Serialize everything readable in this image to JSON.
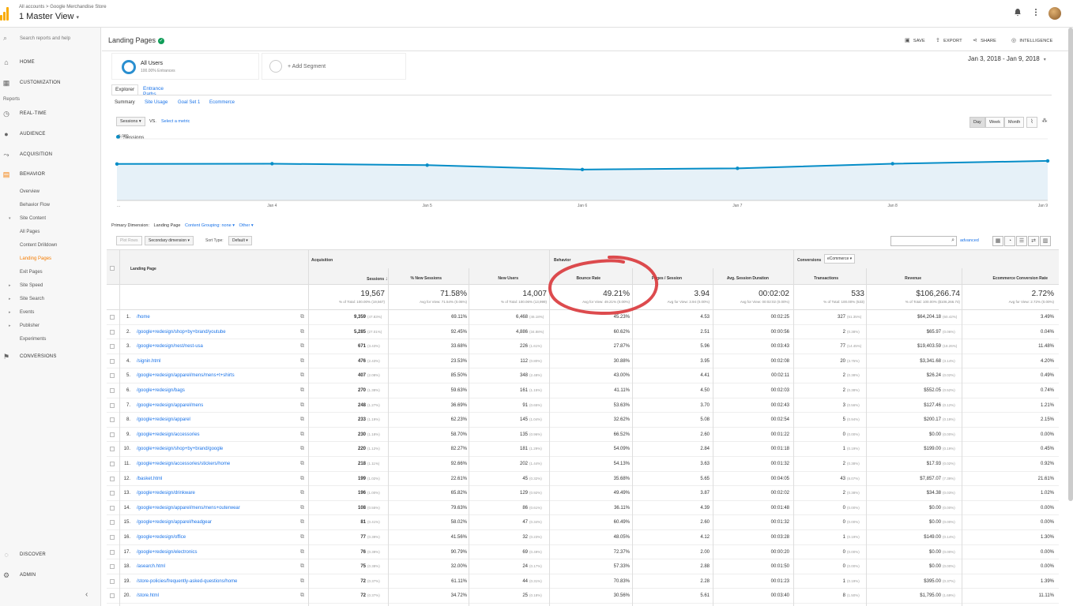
{
  "topbar": {
    "breadcrumb": "All accounts > Google Merchandise Store",
    "view_name": "1 Master View",
    "view_caret": "▾",
    "bell_icon": "bell-icon",
    "menu_icon": "more-vert-icon"
  },
  "sidebar": {
    "search_placeholder": "Search reports and help",
    "home": "HOME",
    "customization": "CUSTOMIZATION",
    "reports_header": "Reports",
    "realtime": "REAL-TIME",
    "audience": "AUDIENCE",
    "acquisition": "ACQUISITION",
    "behavior": "BEHAVIOR",
    "sub": {
      "overview": "Overview",
      "behavior_flow": "Behavior Flow",
      "site_content": "Site Content",
      "all_pages": "All Pages",
      "content_drilldown": "Content Drilldown",
      "landing_pages": "Landing Pages",
      "exit_pages": "Exit Pages",
      "site_speed": "Site Speed",
      "site_search": "Site Search",
      "events": "Events",
      "publisher": "Publisher",
      "experiments": "Experiments"
    },
    "conversions": "CONVERSIONS",
    "discover": "DISCOVER",
    "admin": "ADMIN"
  },
  "header": {
    "title": "Landing Pages",
    "save": "SAVE",
    "export": "EXPORT",
    "share": "SHARE",
    "intelligence": "INTELLIGENCE"
  },
  "segments": {
    "all_users": "All Users",
    "all_users_sub": "100.00% Entrances",
    "add_segment": "+ Add Segment"
  },
  "date_range": "Jan 3, 2018 - Jan 9, 2018",
  "tabs": {
    "explorer": "Explorer",
    "entrance_paths": "Entrance Paths",
    "summary": "Summary",
    "site_usage": "Site Usage",
    "goal_set": "Goal Set 1",
    "ecommerce": "Ecommerce"
  },
  "chart_controls": {
    "metric": "Sessions",
    "vs": "VS.",
    "select_metric": "Select a metric",
    "day": "Day",
    "week": "Week",
    "month": "Month"
  },
  "chart_data": {
    "type": "line",
    "legend": "Sessions",
    "y_ticks": [
      "5,000",
      "2,500"
    ],
    "x_labels": [
      "...",
      "Jan 4",
      "Jan 5",
      "Jan 6",
      "Jan 7",
      "Jan 8",
      "Jan 9"
    ],
    "series": [
      {
        "name": "Sessions",
        "values": [
          2750,
          2770,
          2660,
          2330,
          2420,
          2770,
          2980
        ]
      }
    ],
    "ylim": [
      0,
      5000
    ],
    "color": "#058dc7"
  },
  "dimension": {
    "primary_label": "Primary Dimension:",
    "landing_page": "Landing Page",
    "content_grouping": "Content Grouping: none ▾",
    "other": "Other ▾"
  },
  "table_controls": {
    "plot_rows": "Plot Rows",
    "secondary": "Secondary dimension ▾",
    "sort_type": "Sort Type:",
    "default": "Default ▾",
    "advanced": "advanced"
  },
  "table": {
    "group_acquisition": "Acquisition",
    "group_behavior": "Behavior",
    "group_conversions": "Conversions",
    "conv_select": "eCommerce ▾",
    "headers": {
      "landing_page": "Landing Page",
      "sessions": "Sessions",
      "new_sessions": "% New Sessions",
      "new_users": "New Users",
      "bounce": "Bounce Rate",
      "pages": "Pages / Session",
      "duration": "Avg. Session Duration",
      "transactions": "Transactions",
      "revenue": "Revenue",
      "conv_rate": "Ecommerce Conversion Rate"
    },
    "totals": {
      "sessions": "19,567",
      "sessions_sub": "% of Total: 100.00% (19,567)",
      "new_sessions": "71.58%",
      "new_sessions_sub": "Avg for View: 71.54% (0.06%)",
      "new_users": "14,007",
      "new_users_sub": "% of Total: 100.06% (13,999)",
      "bounce": "49.21%",
      "bounce_sub": "Avg for View: 49.21% (0.00%)",
      "pages": "3.94",
      "pages_sub": "Avg for View: 3.94 (0.00%)",
      "duration": "00:02:02",
      "duration_sub": "Avg for View: 00:02:02 (0.00%)",
      "transactions": "533",
      "transactions_sub": "% of Total: 100.00% (533)",
      "revenue": "$106,266.74",
      "revenue_sub": "% of Total: 100.00% ($106,266.74)",
      "conv_rate": "2.72%",
      "conv_rate_sub": "Avg for View: 2.72% (0.00%)"
    },
    "rows": [
      {
        "n": "1.",
        "page": "/home",
        "s": "9,359",
        "sp": "(47.83%)",
        "ns": "69.11%",
        "nu": "6,468",
        "nup": "(46.18%)",
        "br": "45.23%",
        "pp": "4.53",
        "d": "00:02:25",
        "t": "327",
        "tp": "(61.35%)",
        "r": "$64,204.18",
        "rp": "(60.42%)",
        "c": "3.49%"
      },
      {
        "n": "2.",
        "page": "/google+redesign/shop+by+brand/youtube",
        "s": "5,285",
        "sp": "(27.01%)",
        "ns": "92.45%",
        "nu": "4,886",
        "nup": "(34.88%)",
        "br": "60.62%",
        "pp": "2.51",
        "d": "00:00:56",
        "t": "2",
        "tp": "(0.38%)",
        "r": "$65.97",
        "rp": "(0.06%)",
        "c": "0.04%"
      },
      {
        "n": "3.",
        "page": "/google+redesign/nest/nest-usa",
        "s": "671",
        "sp": "(3.43%)",
        "ns": "33.68%",
        "nu": "226",
        "nup": "(1.61%)",
        "br": "27.87%",
        "pp": "5.96",
        "d": "00:03:43",
        "t": "77",
        "tp": "(14.45%)",
        "r": "$19,403.59",
        "rp": "(18.26%)",
        "c": "11.48%"
      },
      {
        "n": "4.",
        "page": "/signin.html",
        "s": "476",
        "sp": "(2.43%)",
        "ns": "23.53%",
        "nu": "112",
        "nup": "(0.80%)",
        "br": "30.88%",
        "pp": "3.95",
        "d": "00:02:08",
        "t": "20",
        "tp": "(3.75%)",
        "r": "$3,341.68",
        "rp": "(3.14%)",
        "c": "4.20%"
      },
      {
        "n": "5.",
        "page": "/google+redesign/apparel/mens/mens+t+shirts",
        "s": "407",
        "sp": "(2.08%)",
        "ns": "85.50%",
        "nu": "348",
        "nup": "(2.48%)",
        "br": "43.00%",
        "pp": "4.41",
        "d": "00:02:11",
        "t": "2",
        "tp": "(0.38%)",
        "r": "$26.24",
        "rp": "(0.02%)",
        "c": "0.49%"
      },
      {
        "n": "6.",
        "page": "/google+redesign/bags",
        "s": "270",
        "sp": "(1.38%)",
        "ns": "59.63%",
        "nu": "161",
        "nup": "(1.15%)",
        "br": "41.11%",
        "pp": "4.50",
        "d": "00:02:03",
        "t": "2",
        "tp": "(0.38%)",
        "r": "$552.05",
        "rp": "(0.52%)",
        "c": "0.74%"
      },
      {
        "n": "7.",
        "page": "/google+redesign/apparel/mens",
        "s": "248",
        "sp": "(1.27%)",
        "ns": "36.69%",
        "nu": "91",
        "nup": "(0.65%)",
        "br": "53.63%",
        "pp": "3.70",
        "d": "00:02:43",
        "t": "3",
        "tp": "(0.56%)",
        "r": "$127.46",
        "rp": "(0.12%)",
        "c": "1.21%"
      },
      {
        "n": "8.",
        "page": "/google+redesign/apparel",
        "s": "233",
        "sp": "(1.19%)",
        "ns": "62.23%",
        "nu": "145",
        "nup": "(1.04%)",
        "br": "32.62%",
        "pp": "5.08",
        "d": "00:02:54",
        "t": "5",
        "tp": "(0.94%)",
        "r": "$200.17",
        "rp": "(0.19%)",
        "c": "2.15%"
      },
      {
        "n": "9.",
        "page": "/google+redesign/accessories",
        "s": "230",
        "sp": "(1.18%)",
        "ns": "58.70%",
        "nu": "135",
        "nup": "(0.96%)",
        "br": "66.52%",
        "pp": "2.60",
        "d": "00:01:22",
        "t": "0",
        "tp": "(0.00%)",
        "r": "$0.00",
        "rp": "(0.00%)",
        "c": "0.00%"
      },
      {
        "n": "10.",
        "page": "/google+redesign/shop+by+brand/google",
        "s": "220",
        "sp": "(1.12%)",
        "ns": "82.27%",
        "nu": "181",
        "nup": "(1.29%)",
        "br": "54.09%",
        "pp": "2.84",
        "d": "00:01:18",
        "t": "1",
        "tp": "(0.19%)",
        "r": "$199.00",
        "rp": "(0.19%)",
        "c": "0.45%"
      },
      {
        "n": "11.",
        "page": "/google+redesign/accessories/stickers/home",
        "s": "218",
        "sp": "(1.11%)",
        "ns": "92.66%",
        "nu": "202",
        "nup": "(1.44%)",
        "br": "54.13%",
        "pp": "3.63",
        "d": "00:01:32",
        "t": "2",
        "tp": "(0.38%)",
        "r": "$17.93",
        "rp": "(0.02%)",
        "c": "0.92%"
      },
      {
        "n": "12.",
        "page": "/basket.html",
        "s": "199",
        "sp": "(1.02%)",
        "ns": "22.61%",
        "nu": "45",
        "nup": "(0.32%)",
        "br": "35.68%",
        "pp": "5.65",
        "d": "00:04:05",
        "t": "43",
        "tp": "(8.07%)",
        "r": "$7,857.07",
        "rp": "(7.39%)",
        "c": "21.61%"
      },
      {
        "n": "13.",
        "page": "/google+redesign/drinkware",
        "s": "196",
        "sp": "(1.00%)",
        "ns": "65.82%",
        "nu": "129",
        "nup": "(0.92%)",
        "br": "49.49%",
        "pp": "3.87",
        "d": "00:02:02",
        "t": "2",
        "tp": "(0.38%)",
        "r": "$34.38",
        "rp": "(0.03%)",
        "c": "1.02%"
      },
      {
        "n": "14.",
        "page": "/google+redesign/apparel/mens/mens+outerwear",
        "s": "108",
        "sp": "(0.55%)",
        "ns": "79.63%",
        "nu": "86",
        "nup": "(0.61%)",
        "br": "36.11%",
        "pp": "4.39",
        "d": "00:01:48",
        "t": "0",
        "tp": "(0.00%)",
        "r": "$0.00",
        "rp": "(0.00%)",
        "c": "0.00%"
      },
      {
        "n": "15.",
        "page": "/google+redesign/apparel/headgear",
        "s": "81",
        "sp": "(0.41%)",
        "ns": "58.02%",
        "nu": "47",
        "nup": "(0.34%)",
        "br": "60.49%",
        "pp": "2.60",
        "d": "00:01:32",
        "t": "0",
        "tp": "(0.00%)",
        "r": "$0.00",
        "rp": "(0.00%)",
        "c": "0.00%"
      },
      {
        "n": "16.",
        "page": "/google+redesign/office",
        "s": "77",
        "sp": "(0.39%)",
        "ns": "41.56%",
        "nu": "32",
        "nup": "(0.23%)",
        "br": "48.05%",
        "pp": "4.12",
        "d": "00:03:28",
        "t": "1",
        "tp": "(0.19%)",
        "r": "$149.00",
        "rp": "(0.14%)",
        "c": "1.30%"
      },
      {
        "n": "17.",
        "page": "/google+redesign/electronics",
        "s": "76",
        "sp": "(0.39%)",
        "ns": "90.79%",
        "nu": "69",
        "nup": "(0.49%)",
        "br": "72.37%",
        "pp": "2.00",
        "d": "00:00:20",
        "t": "0",
        "tp": "(0.00%)",
        "r": "$0.00",
        "rp": "(0.00%)",
        "c": "0.00%"
      },
      {
        "n": "18.",
        "page": "/asearch.html",
        "s": "75",
        "sp": "(0.38%)",
        "ns": "32.00%",
        "nu": "24",
        "nup": "(0.17%)",
        "br": "57.33%",
        "pp": "2.88",
        "d": "00:01:50",
        "t": "0",
        "tp": "(0.00%)",
        "r": "$0.00",
        "rp": "(0.00%)",
        "c": "0.00%"
      },
      {
        "n": "19.",
        "page": "/store-policies/frequently-asked-questions/home",
        "s": "72",
        "sp": "(0.37%)",
        "ns": "61.11%",
        "nu": "44",
        "nup": "(0.31%)",
        "br": "70.83%",
        "pp": "2.28",
        "d": "00:01:23",
        "t": "1",
        "tp": "(0.19%)",
        "r": "$395.00",
        "rp": "(0.37%)",
        "c": "1.39%"
      },
      {
        "n": "20.",
        "page": "/store.html",
        "s": "72",
        "sp": "(0.37%)",
        "ns": "34.72%",
        "nu": "25",
        "nup": "(0.18%)",
        "br": "30.56%",
        "pp": "5.61",
        "d": "00:03:40",
        "t": "8",
        "tp": "(1.50%)",
        "r": "$1,795.00",
        "rp": "(1.69%)",
        "c": "11.11%"
      }
    ]
  }
}
